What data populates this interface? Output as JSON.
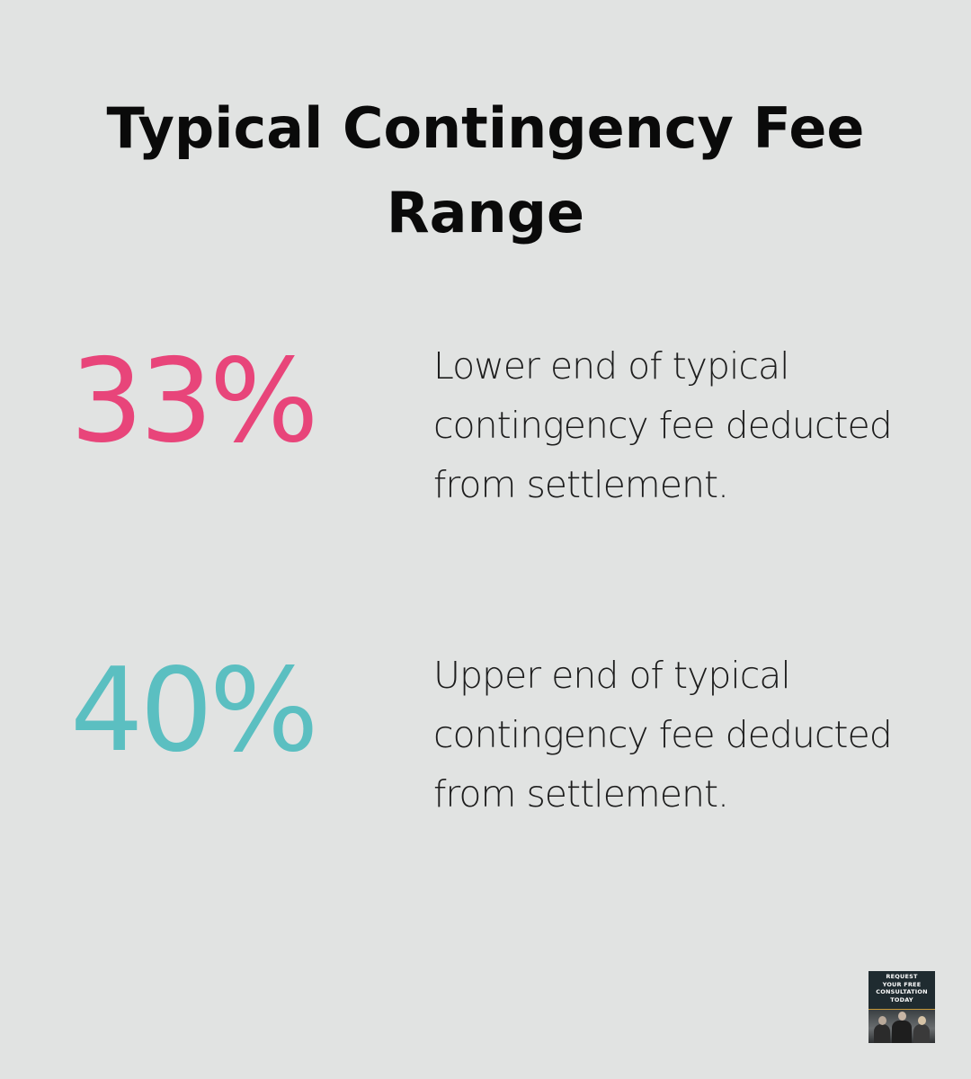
{
  "title": "Typical Contingency Fee Range",
  "stats": [
    {
      "value": "33%",
      "description": "Lower end of typical contingency fee deducted from settlement.",
      "color": "#e8457a"
    },
    {
      "value": "40%",
      "description": "Upper end of typical contingency fee deducted from settlement.",
      "color": "#5bbfc1"
    }
  ],
  "promo": {
    "lines": [
      "REQUEST",
      "YOUR FREE",
      "CONSULTATION",
      "TODAY"
    ],
    "background": "#1f2b30"
  },
  "colors": {
    "background": "#e1e3e2",
    "text": "#0a0a0a"
  }
}
